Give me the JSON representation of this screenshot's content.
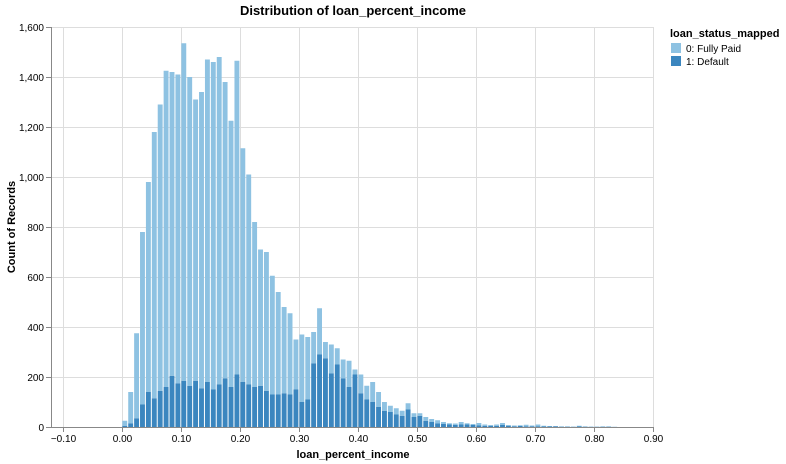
{
  "chart_data": {
    "type": "bar",
    "title": "Distribution of loan_percent_income",
    "xlabel": "loan_percent_income",
    "ylabel": "Count of Records",
    "xlim": [
      -0.12,
      0.9
    ],
    "ylim": [
      0,
      1600
    ],
    "x_ticks": [
      "−0.10",
      "0.00",
      "0.10",
      "0.20",
      "0.30",
      "0.40",
      "0.50",
      "0.60",
      "0.70",
      "0.80",
      "0.90"
    ],
    "x_tick_values": [
      -0.1,
      0,
      0.1,
      0.2,
      0.3,
      0.4,
      0.5,
      0.6,
      0.7,
      0.8,
      0.9
    ],
    "y_ticks": [
      "0",
      "200",
      "400",
      "600",
      "800",
      "1,000",
      "1,200",
      "1,400",
      "1,600"
    ],
    "y_tick_values": [
      0,
      200,
      400,
      600,
      800,
      1000,
      1200,
      1400,
      1600
    ],
    "grid": true,
    "stacked": true,
    "bin_width": 0.01,
    "legend": {
      "title": "loan_status_mapped",
      "position": "top-right"
    },
    "x": [
      0.0,
      0.01,
      0.02,
      0.03,
      0.04,
      0.05,
      0.06,
      0.07,
      0.08,
      0.09,
      0.1,
      0.11,
      0.12,
      0.13,
      0.14,
      0.15,
      0.16,
      0.17,
      0.18,
      0.19,
      0.2,
      0.21,
      0.22,
      0.23,
      0.24,
      0.25,
      0.26,
      0.27,
      0.28,
      0.29,
      0.3,
      0.31,
      0.32,
      0.33,
      0.34,
      0.35,
      0.36,
      0.37,
      0.38,
      0.39,
      0.4,
      0.41,
      0.42,
      0.43,
      0.44,
      0.45,
      0.46,
      0.47,
      0.48,
      0.49,
      0.5,
      0.51,
      0.52,
      0.53,
      0.54,
      0.55,
      0.56,
      0.57,
      0.58,
      0.59,
      0.6,
      0.61,
      0.62,
      0.63,
      0.64,
      0.65,
      0.66,
      0.67,
      0.68,
      0.69,
      0.7,
      0.71,
      0.72,
      0.73,
      0.74,
      0.75,
      0.76,
      0.77,
      0.78,
      0.79,
      0.8,
      0.81,
      0.82,
      0.83
    ],
    "series": [
      {
        "name": "1: Default",
        "color": "#3b86bf",
        "values": [
          5,
          15,
          35,
          90,
          140,
          115,
          145,
          160,
          205,
          175,
          185,
          165,
          185,
          155,
          180,
          150,
          170,
          195,
          160,
          210,
          180,
          170,
          160,
          165,
          145,
          130,
          130,
          135,
          130,
          150,
          100,
          110,
          255,
          290,
          275,
          215,
          250,
          195,
          160,
          210,
          135,
          110,
          100,
          80,
          65,
          60,
          50,
          45,
          70,
          40,
          45,
          25,
          20,
          15,
          12,
          10,
          8,
          10,
          10,
          8,
          6,
          5,
          5,
          5,
          8,
          4,
          3,
          4,
          3,
          3,
          2,
          2,
          2,
          3,
          1,
          1,
          1,
          2,
          1,
          1,
          1,
          1,
          1,
          0
        ]
      },
      {
        "name": "0: Fully Paid",
        "color": "#8ec2e2",
        "values": [
          20,
          125,
          340,
          690,
          840,
          1065,
          1145,
          1265,
          1215,
          1235,
          1350,
          1235,
          1125,
          1185,
          1290,
          1310,
          1310,
          1185,
          1065,
          1255,
          935,
          840,
          660,
          545,
          555,
          475,
          410,
          345,
          325,
          200,
          270,
          250,
          125,
          185,
          65,
          115,
          65,
          75,
          105,
          20,
          75,
          55,
          80,
          60,
          35,
          25,
          25,
          20,
          25,
          15,
          10,
          15,
          12,
          12,
          8,
          5,
          6,
          10,
          5,
          4,
          10,
          5,
          3,
          5,
          8,
          4,
          3,
          3,
          6,
          3,
          8,
          3,
          2,
          0,
          2,
          2,
          1,
          3,
          2,
          1,
          1,
          2,
          2,
          1
        ]
      }
    ]
  }
}
